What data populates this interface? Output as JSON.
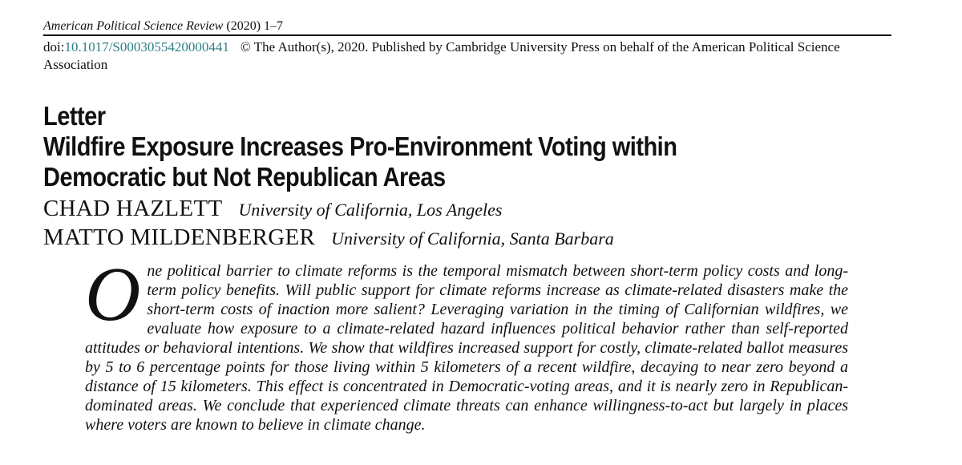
{
  "header": {
    "journal_name": "American Political Science Review",
    "journal_rest": " (2020) 1–7",
    "doi_prefix": "doi:",
    "doi_link": "10.1017/S0003055420000441",
    "copyright": "© The Author(s), 2020. Published by Cambridge University Press on behalf of the American Political Science Association"
  },
  "article": {
    "type_label": "Letter",
    "title_line1": "Wildfire Exposure Increases Pro-Environment Voting within",
    "title_line2": "Democratic but Not Republican Areas"
  },
  "authors": [
    {
      "name": "CHAD HAZLETT",
      "affiliation": "University of California, Los Angeles"
    },
    {
      "name": "MATTO MILDENBERGER",
      "affiliation": "University of California, Santa Barbara"
    }
  ],
  "abstract": {
    "drop_cap": "O",
    "text": "ne political barrier to climate reforms is the temporal mismatch between short-term policy costs and long-term policy benefits. Will public support for climate reforms increase as climate-related disasters make the short-term costs of inaction more salient? Leveraging variation in the timing of Californian wildfires, we evaluate how exposure to a climate-related hazard influences political behavior rather than self-reported attitudes or behavioral intentions. We show that wildfires increased support for costly, climate-related ballot measures by 5 to 6 percentage points for those living within 5 kilometers of a recent wildfire, decaying to near zero beyond a distance of 15 kilometers. This effect is concentrated in Democratic-voting areas, and it is nearly zero in Republican-dominated areas. We conclude that experienced climate threats can enhance willingness-to-act but largely in places where voters are known to believe in climate change."
  },
  "colors": {
    "doi_link": "#2e7e86",
    "text": "#111111"
  }
}
